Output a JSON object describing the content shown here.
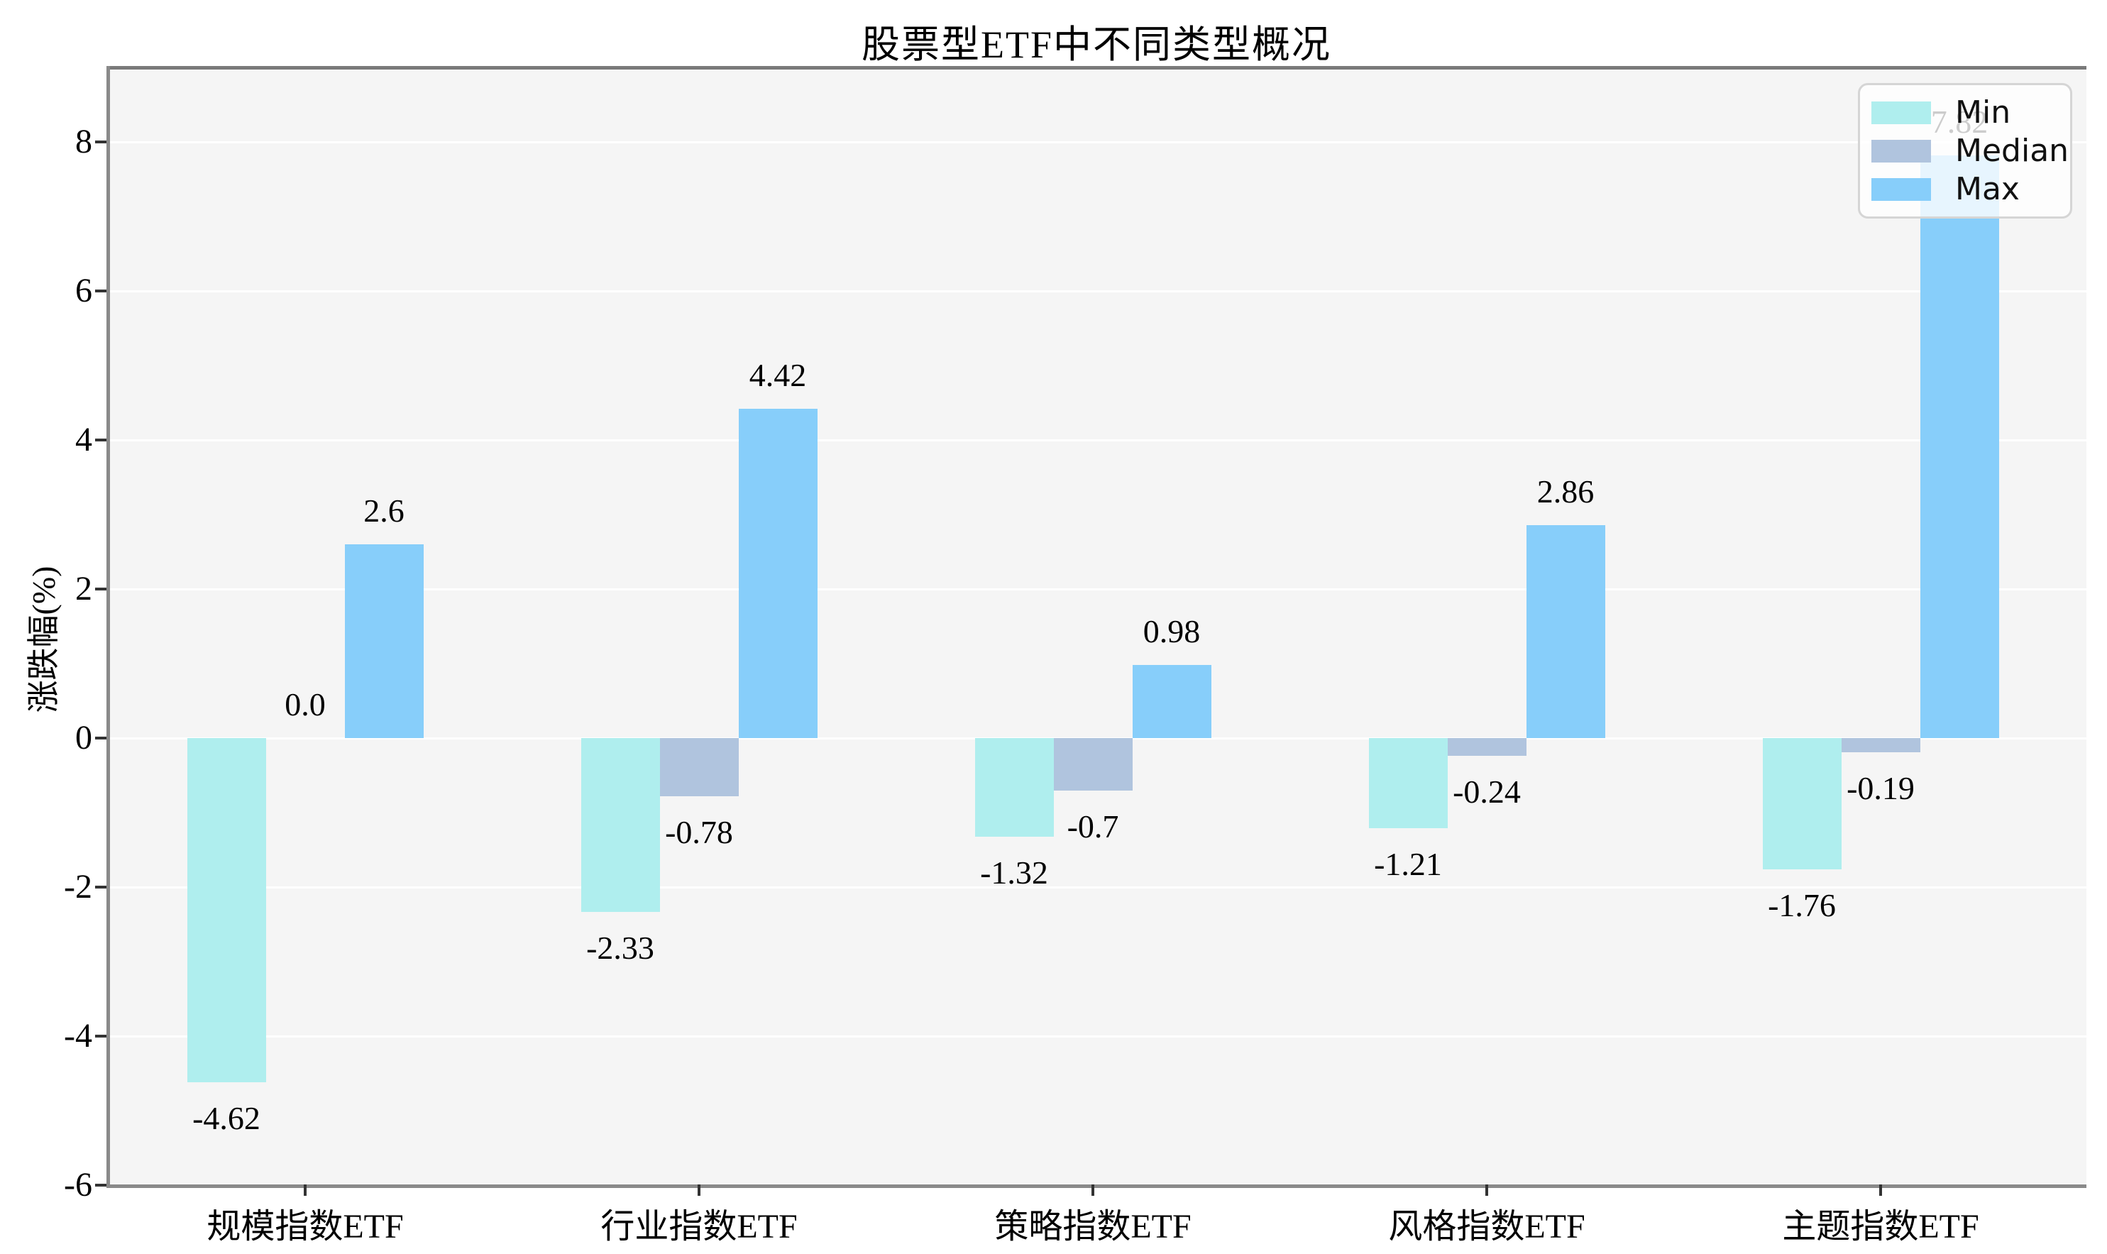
{
  "chart_data": {
    "type": "bar",
    "title": "股票型ETF中不同类型概况",
    "ylabel": "涨跌幅(%)",
    "xlabel": "",
    "categories": [
      "规模指数ETF",
      "行业指数ETF",
      "策略指数ETF",
      "风格指数ETF",
      "主题指数ETF"
    ],
    "series": [
      {
        "name": "Min",
        "color": "#AFEEEE",
        "values": [
          -4.62,
          -2.33,
          -1.32,
          -1.21,
          -1.76
        ],
        "labels": [
          "-4.62",
          "-2.33",
          "-1.32",
          "-1.21",
          "-1.76"
        ]
      },
      {
        "name": "Median",
        "color": "#B0C4DE",
        "values": [
          0.0,
          -0.78,
          -0.7,
          -0.24,
          -0.19
        ],
        "labels": [
          "0.0",
          "-0.78",
          "-0.7",
          "-0.24",
          "-0.19"
        ]
      },
      {
        "name": "Max",
        "color": "#87CEFA",
        "values": [
          2.6,
          4.42,
          0.98,
          2.86,
          7.82
        ],
        "labels": [
          "2.6",
          "4.42",
          "0.98",
          "2.86",
          "7.82"
        ]
      }
    ],
    "yticks": [
      8,
      6,
      4,
      2,
      0,
      -2,
      -4,
      -6
    ],
    "ylim": [
      -6.05,
      9.02
    ],
    "grid": "horizontal",
    "legend_position": "upper-right",
    "legend_entries": [
      "Min",
      "Median",
      "Max"
    ],
    "colors": {
      "plot_background": "#F5F5F5",
      "figure_background": "#FFFFFF",
      "grid_line": "#FFFFFF",
      "zero_line": "#7A7A7A",
      "spine": "#8A8A8A",
      "text": "#000000",
      "legend_border": "#D5D5D5"
    }
  }
}
